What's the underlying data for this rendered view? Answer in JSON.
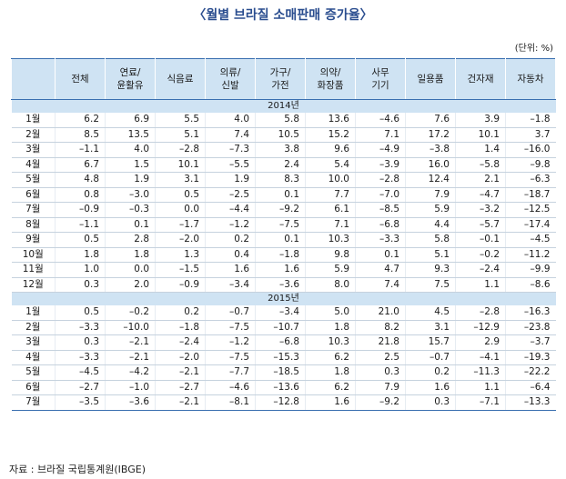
{
  "title": "〈월별 브라질 소매판매 증가율〉",
  "unit": "(단위: %)",
  "headers": [
    "",
    "전체",
    "연료/\n윤활유",
    "식음료",
    "의류/\n신발",
    "가구/\n가전",
    "의약/\n화장품",
    "사무\n기기",
    "일용품",
    "건자재",
    "자동차"
  ],
  "sections": [
    {
      "year": "2014년",
      "rows": [
        {
          "month": "1월",
          "values": [
            "6.2",
            "6.9",
            "5.5",
            "4.0",
            "5.8",
            "13.6",
            "–4.6",
            "7.6",
            "3.9",
            "–1.8"
          ]
        },
        {
          "month": "2월",
          "values": [
            "8.5",
            "13.5",
            "5.1",
            "7.4",
            "10.5",
            "15.2",
            "7.1",
            "17.2",
            "10.1",
            "3.7"
          ]
        },
        {
          "month": "3월",
          "values": [
            "–1.1",
            "4.0",
            "–2.8",
            "–7.3",
            "3.8",
            "9.6",
            "–4.9",
            "–3.8",
            "1.4",
            "–16.0"
          ]
        },
        {
          "month": "4월",
          "values": [
            "6.7",
            "1.5",
            "10.1",
            "–5.5",
            "2.4",
            "5.4",
            "–3.9",
            "16.0",
            "–5.8",
            "–9.8"
          ]
        },
        {
          "month": "5월",
          "values": [
            "4.8",
            "1.9",
            "3.1",
            "1.9",
            "8.3",
            "10.0",
            "–2.8",
            "12.4",
            "2.1",
            "–6.3"
          ]
        },
        {
          "month": "6월",
          "values": [
            "0.8",
            "–3.0",
            "0.5",
            "–2.5",
            "0.1",
            "7.7",
            "–7.0",
            "7.9",
            "–4.7",
            "–18.7"
          ]
        },
        {
          "month": "7월",
          "values": [
            "–0.9",
            "–0.3",
            "0.0",
            "–4.4",
            "–9.2",
            "6.1",
            "–8.5",
            "5.9",
            "–3.2",
            "–12.5"
          ]
        },
        {
          "month": "8월",
          "values": [
            "–1.1",
            "0.1",
            "–1.7",
            "–1.2",
            "–7.5",
            "7.1",
            "–6.8",
            "4.4",
            "–5.7",
            "–17.4"
          ]
        },
        {
          "month": "9월",
          "values": [
            "0.5",
            "2.8",
            "–2.0",
            "0.2",
            "0.1",
            "10.3",
            "–3.3",
            "5.8",
            "–0.1",
            "–4.5"
          ]
        },
        {
          "month": "10월",
          "values": [
            "1.8",
            "1.8",
            "1.3",
            "0.4",
            "–1.8",
            "9.8",
            "0.1",
            "5.1",
            "–0.2",
            "–11.2"
          ]
        },
        {
          "month": "11월",
          "values": [
            "1.0",
            "0.0",
            "–1.5",
            "1.6",
            "1.6",
            "5.9",
            "4.7",
            "9.3",
            "–2.4",
            "–9.9"
          ]
        },
        {
          "month": "12월",
          "values": [
            "0.3",
            "2.0",
            "–0.9",
            "–3.4",
            "–3.6",
            "8.0",
            "7.4",
            "7.5",
            "1.1",
            "–8.6"
          ]
        }
      ]
    },
    {
      "year": "2015년",
      "rows": [
        {
          "month": "1월",
          "values": [
            "0.5",
            "–0.2",
            "0.2",
            "–0.7",
            "–3.4",
            "5.0",
            "21.0",
            "4.5",
            "–2.8",
            "–16.3"
          ]
        },
        {
          "month": "2월",
          "values": [
            "–3.3",
            "–10.0",
            "–1.8",
            "–7.5",
            "–10.7",
            "1.8",
            "8.2",
            "3.1",
            "–12.9",
            "–23.8"
          ]
        },
        {
          "month": "3월",
          "values": [
            "0.3",
            "–2.1",
            "–2.4",
            "–1.2",
            "–6.8",
            "10.3",
            "21.8",
            "15.7",
            "2.9",
            "–3.7"
          ]
        },
        {
          "month": "4월",
          "values": [
            "–3.3",
            "–2.1",
            "–2.0",
            "–7.5",
            "–15.3",
            "6.2",
            "2.5",
            "–0.7",
            "–4.1",
            "–19.3"
          ]
        },
        {
          "month": "5월",
          "values": [
            "–4.5",
            "–4.2",
            "–2.1",
            "–7.7",
            "–18.5",
            "1.8",
            "0.3",
            "0.2",
            "–11.3",
            "–22.2"
          ]
        },
        {
          "month": "6월",
          "values": [
            "–2.7",
            "–1.0",
            "–2.7",
            "–4.6",
            "–13.6",
            "6.2",
            "7.9",
            "1.6",
            "1.1",
            "–6.4"
          ]
        },
        {
          "month": "7월",
          "values": [
            "–3.5",
            "–3.6",
            "–2.1",
            "–8.1",
            "–12.8",
            "1.6",
            "–9.2",
            "0.3",
            "–7.1",
            "–13.3"
          ]
        }
      ]
    }
  ],
  "source": "자료 : 브라질 국립통계원(IBGE)"
}
